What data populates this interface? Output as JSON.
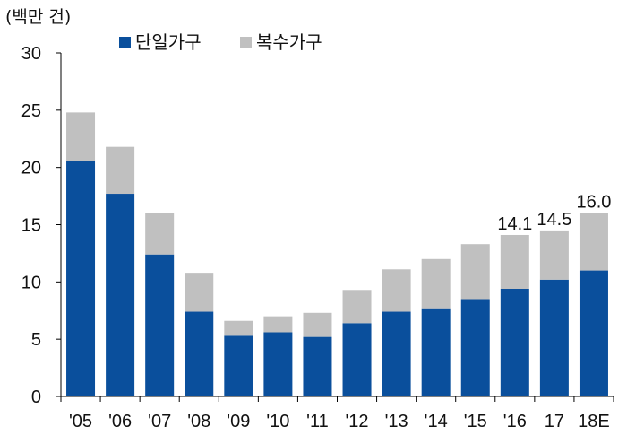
{
  "chart_data": {
    "type": "bar",
    "stacked": true,
    "unit_label": "(백만 건)",
    "categories": [
      "'05",
      "'06",
      "'07",
      "'08",
      "'09",
      "'10",
      "'11",
      "'12",
      "'13",
      "'14",
      "'15",
      "'16",
      "17",
      "18E"
    ],
    "series": [
      {
        "name": "단일가구",
        "color": "#0a4f9c",
        "values": [
          20.6,
          17.7,
          12.4,
          7.4,
          5.3,
          5.6,
          5.2,
          6.4,
          7.4,
          7.7,
          8.5,
          9.4,
          10.2,
          11.0
        ]
      },
      {
        "name": "복수가구",
        "color": "#c0c0c0",
        "values": [
          4.2,
          4.1,
          3.6,
          3.4,
          1.3,
          1.4,
          2.1,
          2.9,
          3.7,
          4.3,
          4.8,
          4.7,
          4.3,
          5.0
        ]
      }
    ],
    "data_labels": [
      {
        "category": "'16",
        "text": "14.1"
      },
      {
        "category": "17",
        "text": "14.5"
      },
      {
        "category": "18E",
        "text": "16.0"
      }
    ],
    "ylim": [
      0,
      30
    ],
    "yticks": [
      0,
      5,
      10,
      15,
      20,
      25,
      30
    ],
    "grid": false,
    "legend_position": "top-left"
  }
}
